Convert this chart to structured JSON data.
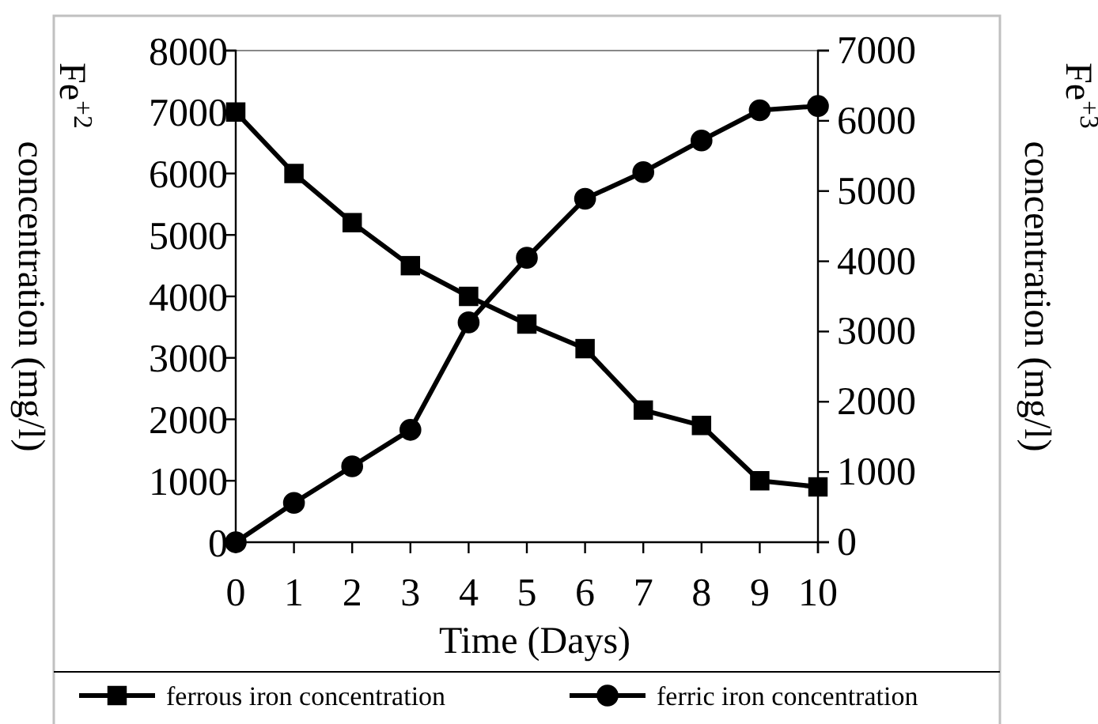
{
  "chart_data": {
    "type": "line",
    "xlabel": "Time  (Days)",
    "ylabel": "Fe$^{+2}$ concentration (mg/l)",
    "y2label": "Fe$^{+3}$ concentration (mg/l)",
    "x": [
      0,
      1,
      2,
      3,
      4,
      5,
      6,
      7,
      8,
      9,
      10
    ],
    "xlim": [
      0,
      10
    ],
    "xticks": [
      0,
      1,
      2,
      3,
      4,
      5,
      6,
      7,
      8,
      9,
      10
    ],
    "ylim": [
      0,
      8000
    ],
    "yticks": [
      0,
      1000,
      2000,
      3000,
      4000,
      5000,
      6000,
      7000,
      8000
    ],
    "y2lim": [
      0,
      7000
    ],
    "y2ticks": [
      0,
      1000,
      2000,
      3000,
      4000,
      5000,
      6000,
      7000
    ],
    "series": [
      {
        "name": "ferrous iron concentration",
        "color": "#000000",
        "marker": "square",
        "values": [
          7000,
          6000,
          5200,
          4500,
          4000,
          3550,
          3150,
          2150,
          1900,
          1000,
          900
        ]
      },
      {
        "name": "ferric iron concentration",
        "color": "#000000",
        "marker": "circle",
        "axis": "y2",
        "values": [
          0,
          560,
          1080,
          1600,
          3130,
          4050,
          4890,
          5270,
          5720,
          6150,
          6210
        ]
      }
    ],
    "grid": false,
    "legend": "bottom"
  }
}
